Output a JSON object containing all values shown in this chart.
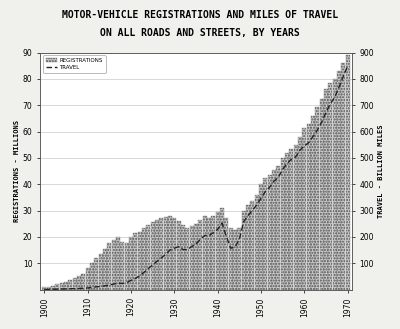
{
  "title_line1": "MOTOR-VEHICLE REGISTRATIONS AND MILES OF TRAVEL",
  "title_line2": "ON ALL ROADS AND STREETS, BY YEARS",
  "ylabel_left": "REGISTRATIONS - MILLIONS",
  "ylabel_right": "TRAVEL - BILLION MILES",
  "years": [
    1900,
    1901,
    1902,
    1903,
    1904,
    1905,
    1906,
    1907,
    1908,
    1909,
    1910,
    1911,
    1912,
    1913,
    1914,
    1915,
    1916,
    1917,
    1918,
    1919,
    1920,
    1921,
    1922,
    1923,
    1924,
    1925,
    1926,
    1927,
    1928,
    1929,
    1930,
    1931,
    1932,
    1933,
    1934,
    1935,
    1936,
    1937,
    1938,
    1939,
    1940,
    1941,
    1942,
    1943,
    1944,
    1945,
    1946,
    1947,
    1948,
    1949,
    1950,
    1951,
    1952,
    1953,
    1954,
    1955,
    1956,
    1957,
    1958,
    1959,
    1960,
    1961,
    1962,
    1963,
    1964,
    1965,
    1966,
    1967,
    1968,
    1969,
    1970
  ],
  "registrations": [
    0.8,
    1.0,
    1.5,
    2.0,
    2.5,
    3.0,
    3.5,
    4.5,
    5.0,
    6.0,
    8.0,
    10.0,
    12.0,
    13.5,
    15.5,
    17.5,
    19.0,
    20.0,
    18.0,
    17.5,
    20.0,
    21.5,
    22.0,
    23.5,
    24.5,
    25.5,
    26.5,
    27.0,
    27.5,
    28.0,
    27.0,
    26.0,
    24.5,
    23.5,
    24.0,
    25.0,
    26.5,
    28.0,
    27.0,
    28.0,
    29.5,
    31.0,
    27.0,
    23.5,
    22.5,
    23.5,
    30.0,
    32.0,
    33.5,
    36.0,
    40.0,
    42.5,
    43.5,
    45.5,
    47.0,
    50.0,
    52.0,
    53.5,
    55.0,
    58.0,
    61.5,
    63.0,
    66.0,
    69.5,
    72.5,
    76.0,
    78.5,
    80.0,
    83.0,
    86.0,
    89.0
  ],
  "travel": [
    0.5,
    0.7,
    1.0,
    1.5,
    2.0,
    2.5,
    3.0,
    3.5,
    4.0,
    5.0,
    6.0,
    8.0,
    10.0,
    12.0,
    14.0,
    17.0,
    21.0,
    24.0,
    23.0,
    26.0,
    35.0,
    42.0,
    52.0,
    65.0,
    80.0,
    93.0,
    107.0,
    120.0,
    134.0,
    150.0,
    157.0,
    163.0,
    152.0,
    152.0,
    163.0,
    173.0,
    191.0,
    205.0,
    205.0,
    216.0,
    229.0,
    252.0,
    202.0,
    157.0,
    161.0,
    190.0,
    258.0,
    281.0,
    300.0,
    321.0,
    347.0,
    372.0,
    389.0,
    412.0,
    426.0,
    457.0,
    478.0,
    495.0,
    504.0,
    530.0,
    545.0,
    558.0,
    581.0,
    606.0,
    636.0,
    673.0,
    706.0,
    730.0,
    769.0,
    810.0,
    850.0
  ],
  "ylim_left": [
    0,
    90
  ],
  "ylim_right": [
    0,
    900
  ],
  "yticks_left": [
    10,
    20,
    30,
    40,
    50,
    60,
    70,
    80,
    90
  ],
  "yticks_right": [
    100,
    200,
    300,
    400,
    500,
    600,
    700,
    800,
    900
  ],
  "ytick_labels_left": [
    "10",
    "20",
    "30",
    "40",
    "50",
    "60",
    "70",
    "80",
    "90"
  ],
  "ytick_labels_right": [
    "100",
    "200",
    "300",
    "400",
    "500",
    "600",
    "700",
    "800",
    "900"
  ],
  "xtick_years": [
    1900,
    1910,
    1920,
    1930,
    1940,
    1950,
    1960,
    1970
  ],
  "xtick_labels": [
    "1900",
    "1910",
    "1920",
    "1930",
    "1940",
    "1950",
    "1960",
    "1970"
  ],
  "bar_hatch": "......",
  "bar_facecolor": "#cccccc",
  "bar_edgecolor": "#555555",
  "line_color": "#222222",
  "line_style": "--",
  "line_width": 1.0,
  "bg_color": "#f0f0ec",
  "plot_bg": "#ffffff",
  "legend_registrations": "REGISTRATIONS",
  "legend_travel": "TRAVEL",
  "title_fontsize": 7,
  "axis_label_fontsize": 5,
  "tick_fontsize": 5.5,
  "grid_color": "#bbbbbb",
  "grid_linewidth": 0.4
}
